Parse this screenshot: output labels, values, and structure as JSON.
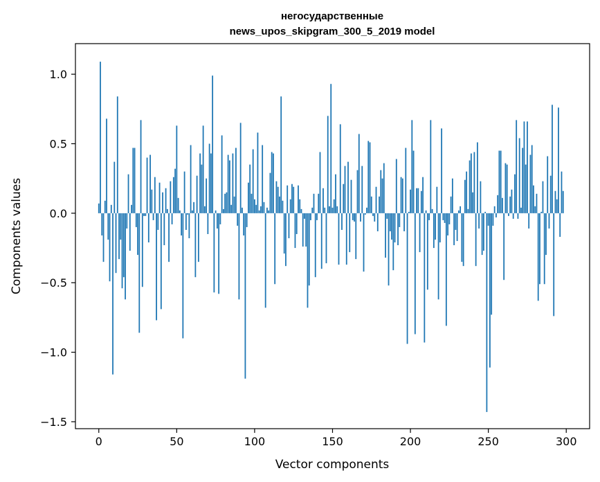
{
  "chart_data": {
    "type": "bar",
    "title": [
      "негосударственные",
      "news_upos_skipgram_300_5_2019 model"
    ],
    "xlabel": "Vector components",
    "ylabel": "Components values",
    "xlim": [
      -15,
      315
    ],
    "ylim": [
      -1.55,
      1.22
    ],
    "x_ticks": [
      0,
      50,
      100,
      150,
      200,
      250,
      300
    ],
    "y_ticks": [
      1.0,
      0.5,
      0.0,
      -0.5,
      -1.0,
      -1.5
    ],
    "y_tick_labels": [
      "1.0",
      "0.5",
      "0.0",
      "−0.5",
      "−1.0",
      "−1.5"
    ],
    "bar_color": "#1f77b4",
    "grid": false,
    "legend": "none",
    "values": [
      0.07,
      1.09,
      -0.16,
      -0.35,
      0.09,
      0.68,
      -0.19,
      -0.49,
      0.06,
      -1.16,
      0.37,
      -0.43,
      0.84,
      -0.33,
      -0.19,
      -0.54,
      -0.46,
      -0.62,
      -0.11,
      0.28,
      -0.27,
      0.06,
      0.47,
      0.47,
      -0.1,
      -0.3,
      -0.86,
      0.67,
      -0.53,
      -0.02,
      -0.02,
      0.4,
      -0.21,
      0.42,
      0.17,
      -0.05,
      0.26,
      -0.77,
      -0.12,
      0.22,
      -0.69,
      0.15,
      -0.23,
      0.18,
      0.03,
      -0.35,
      0.23,
      -0.08,
      0.26,
      0.32,
      0.63,
      0.11,
      0.02,
      -0.16,
      -0.9,
      0.3,
      -0.12,
      -0.01,
      -0.18,
      0.49,
      0.02,
      0.08,
      -0.46,
      0.27,
      -0.35,
      0.43,
      0.35,
      0.63,
      0.05,
      0.25,
      -0.15,
      0.5,
      0.43,
      0.99,
      -0.57,
      0.02,
      -0.11,
      -0.58,
      -0.08,
      0.56,
      0.03,
      0.14,
      0.15,
      0.42,
      0.38,
      0.06,
      0.43,
      0.12,
      0.47,
      -0.09,
      -0.62,
      0.65,
      0.04,
      -0.16,
      -1.19,
      -0.1,
      0.22,
      0.35,
      0.14,
      0.46,
      0.1,
      0.06,
      0.58,
      0.02,
      0.05,
      0.49,
      0.08,
      -0.68,
      0.04,
      0.02,
      0.29,
      0.44,
      0.43,
      -0.51,
      0.23,
      0.19,
      0.12,
      0.84,
      0.09,
      -0.29,
      -0.38,
      0.2,
      -0.18,
      0.1,
      0.21,
      0.19,
      -0.25,
      -0.15,
      0.2,
      0.1,
      0.03,
      -0.24,
      -0.04,
      -0.24,
      -0.68,
      -0.52,
      -0.05,
      0.04,
      0.14,
      -0.46,
      -0.05,
      0.14,
      0.44,
      -0.4,
      0.18,
      0.04,
      -0.36,
      0.7,
      0.05,
      0.93,
      0.04,
      0.1,
      0.28,
      0.05,
      -0.37,
      0.64,
      -0.12,
      0.21,
      0.34,
      -0.37,
      0.37,
      -0.28,
      0.24,
      -0.05,
      -0.06,
      -0.33,
      0.31,
      0.57,
      -0.06,
      0.34,
      -0.42,
      -0.01,
      0.04,
      0.52,
      0.51,
      0.12,
      -0.02,
      -0.06,
      0.19,
      -0.13,
      0.12,
      0.31,
      0.25,
      0.36,
      -0.32,
      -0.04,
      -0.52,
      -0.13,
      -0.19,
      -0.41,
      -0.21,
      0.39,
      -0.23,
      -0.1,
      0.26,
      0.25,
      -0.13,
      0.47,
      -0.94,
      0.01,
      0.17,
      0.67,
      0.45,
      -0.87,
      0.18,
      0.18,
      -0.28,
      0.16,
      0.26,
      -0.93,
      0.02,
      -0.55,
      -0.05,
      0.67,
      0.03,
      -0.25,
      -0.19,
      0.19,
      -0.62,
      -0.21,
      0.61,
      -0.05,
      -0.07,
      -0.81,
      -0.16,
      -0.08,
      0.12,
      0.25,
      -0.23,
      -0.12,
      -0.2,
      0.02,
      0.05,
      -0.35,
      -0.38,
      0.24,
      0.3,
      0.03,
      0.38,
      0.43,
      0.15,
      0.44,
      -0.38,
      0.51,
      -0.11,
      0.23,
      -0.3,
      -0.27,
      0.01,
      -1.43,
      -0.09,
      -1.11,
      -0.73,
      -0.09,
      0.05,
      -0.03,
      0.13,
      0.45,
      0.45,
      0.11,
      -0.48,
      0.36,
      0.35,
      -0.02,
      0.12,
      0.17,
      -0.04,
      0.28,
      0.67,
      -0.04,
      0.54,
      0.04,
      0.47,
      0.66,
      0.35,
      0.66,
      -0.11,
      0.42,
      0.49,
      0.2,
      0.05,
      0.14,
      -0.63,
      -0.51,
      0.01,
      0.23,
      -0.51,
      -0.3,
      0.41,
      -0.11,
      0.27,
      0.78,
      -0.74,
      0.16,
      0.1,
      0.76,
      -0.17,
      0.3,
      0.16
    ]
  }
}
